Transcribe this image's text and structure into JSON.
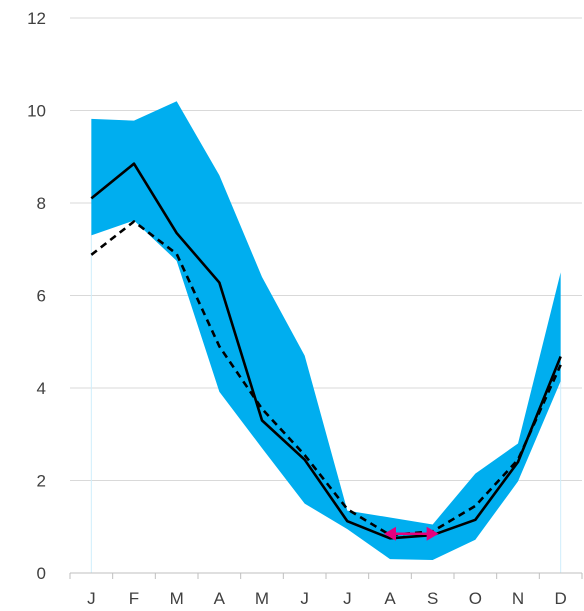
{
  "chart_data": {
    "type": "line",
    "title": "",
    "xlabel": "",
    "ylabel": "",
    "categories": [
      "J",
      "F",
      "M",
      "A",
      "M",
      "J",
      "J",
      "A",
      "S",
      "O",
      "N",
      "D"
    ],
    "ylim": [
      0,
      12
    ],
    "yticks": [
      0,
      2,
      4,
      6,
      8,
      10,
      12
    ],
    "grid": true,
    "legend": "none",
    "band": {
      "upper": [
        9.82,
        9.78,
        10.2,
        8.6,
        6.4,
        4.7,
        1.35,
        1.2,
        1.05,
        2.15,
        2.8,
        6.5
      ],
      "lower": [
        7.3,
        7.62,
        6.75,
        3.92,
        2.7,
        1.5,
        0.95,
        0.3,
        0.28,
        0.72,
        1.98,
        4.15
      ]
    },
    "series": [
      {
        "values": [
          8.1,
          8.85,
          7.35,
          6.28,
          3.3,
          2.45,
          1.12,
          0.75,
          0.82,
          1.15,
          2.4,
          4.68
        ]
      },
      {
        "values": [
          6.88,
          7.6,
          6.9,
          4.9,
          3.55,
          2.55,
          1.38,
          0.82,
          0.9,
          1.45,
          2.45,
          4.5
        ]
      }
    ],
    "annotation": {
      "from_category": 7,
      "to_category": 8,
      "y": 0.85
    },
    "colors": {
      "band": "#00aeef",
      "solid_line": "#000000",
      "dashed_line": "#000000",
      "arrow": "#e6007e"
    }
  }
}
